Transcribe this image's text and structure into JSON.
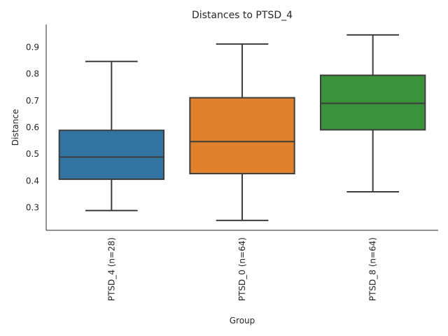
{
  "chart_data": {
    "type": "box",
    "title": "Distances to PTSD_4",
    "xlabel": "Group",
    "ylabel": "Distance",
    "ylim": [
      0.215,
      0.985
    ],
    "yticks": [
      0.3,
      0.4,
      0.5,
      0.6,
      0.7,
      0.8,
      0.9
    ],
    "grid": false,
    "categories": [
      "PTSD_4 (n=28)",
      "PTSD_0 (n=64)",
      "PTSD_8 (n=64)"
    ],
    "boxes": [
      {
        "category": "PTSD_4 (n=28)",
        "whisker_low": 0.289,
        "q1": 0.406,
        "median": 0.489,
        "q3": 0.589,
        "whisker_high": 0.847,
        "color": "#3274a1"
      },
      {
        "category": "PTSD_0 (n=64)",
        "whisker_low": 0.252,
        "q1": 0.427,
        "median": 0.547,
        "q3": 0.711,
        "whisker_high": 0.912,
        "color": "#e1812c"
      },
      {
        "category": "PTSD_8 (n=64)",
        "whisker_low": 0.359,
        "q1": 0.591,
        "median": 0.69,
        "q3": 0.795,
        "whisker_high": 0.946,
        "color": "#3a923a"
      }
    ]
  }
}
